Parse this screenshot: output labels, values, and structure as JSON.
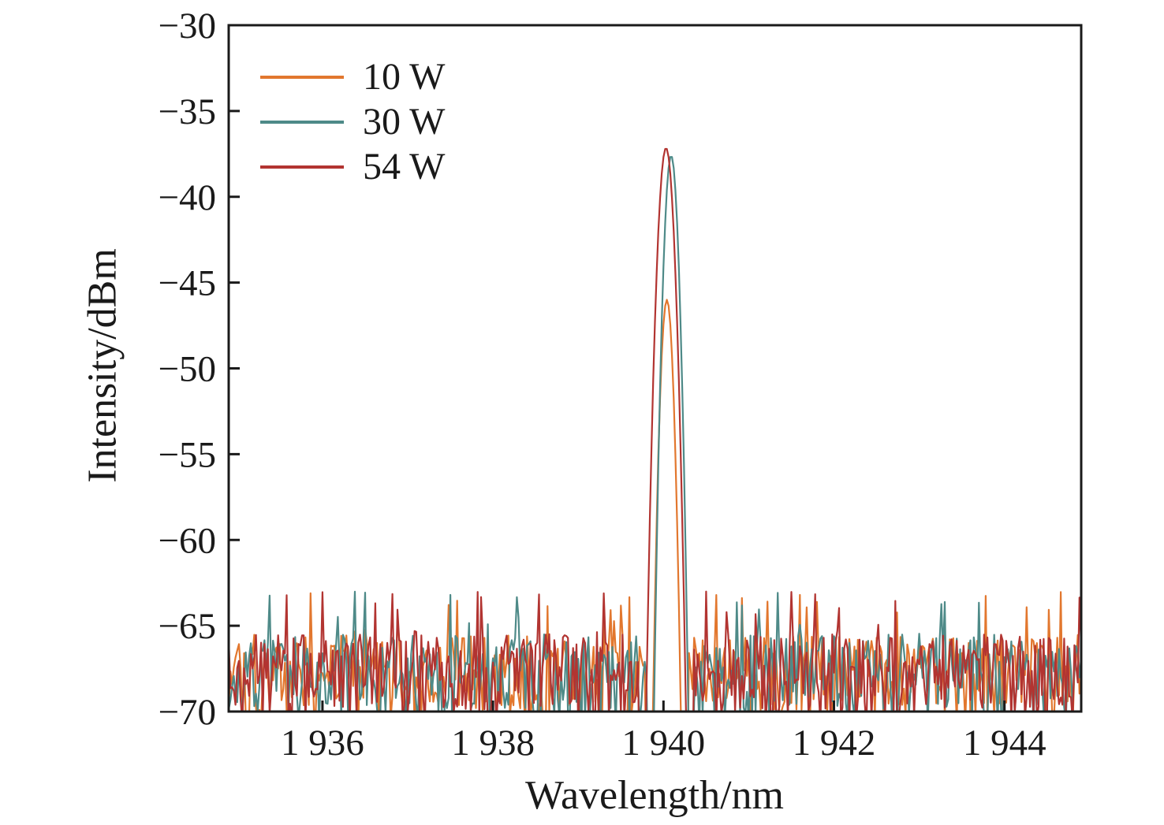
{
  "chart_data": {
    "type": "line",
    "title": "",
    "xlabel": "Wavelength/nm",
    "ylabel": "Intensity/dBm",
    "xlim": [
      1934.9,
      1944.9
    ],
    "ylim": [
      -70,
      -30
    ],
    "grid": false,
    "axes_box": true,
    "tick_direction": "in",
    "axis_color": "#1a1a1a",
    "background": "#ffffff",
    "legend": {
      "position": "top-left",
      "border": false
    },
    "xticks": [
      {
        "value": 1936,
        "label": "1 936"
      },
      {
        "value": 1938,
        "label": "1 938"
      },
      {
        "value": 1940,
        "label": "1 940"
      },
      {
        "value": 1942,
        "label": "1 942"
      },
      {
        "value": 1944,
        "label": "1 944"
      }
    ],
    "yticks": [
      {
        "value": -30,
        "label": "−30"
      },
      {
        "value": -35,
        "label": "−35"
      },
      {
        "value": -40,
        "label": "−40"
      },
      {
        "value": -45,
        "label": "−45"
      },
      {
        "value": -50,
        "label": "−50"
      },
      {
        "value": -55,
        "label": "−55"
      },
      {
        "value": -60,
        "label": "−60"
      },
      {
        "value": -65,
        "label": "−65"
      },
      {
        "value": -70,
        "label": "−70"
      }
    ],
    "noise": {
      "floor_mean_dBm": -67.8,
      "floor_top_dBm": -65.3,
      "spike_max_dBm": -62.2,
      "base_min_dBm": -70.8,
      "span_dB": 5.3,
      "skew": 0.85,
      "spike_prob": 0.08,
      "spike_extra_max_dB": 3.2,
      "step_nm": 0.02
    },
    "series": [
      {
        "name": "10 W",
        "color": "#e2772e",
        "peak_center_nm": 1940.04,
        "peak_dBm": -46.0,
        "parabola_dB_per_nm2": 900,
        "skirt_gap_halfwidth_nm": 0.25,
        "seed": 101
      },
      {
        "name": "30 W",
        "color": "#4e8a88",
        "peak_center_nm": 1940.09,
        "peak_dBm": -37.6,
        "parabola_dB_per_nm2": 800,
        "skirt_gap_halfwidth_nm": 0.27,
        "seed": 202
      },
      {
        "name": "54 W",
        "color": "#b23431",
        "peak_center_nm": 1940.03,
        "peak_dBm": -37.15,
        "parabola_dB_per_nm2": 600,
        "skirt_gap_halfwidth_nm": 0.32,
        "seed": 303
      }
    ]
  }
}
